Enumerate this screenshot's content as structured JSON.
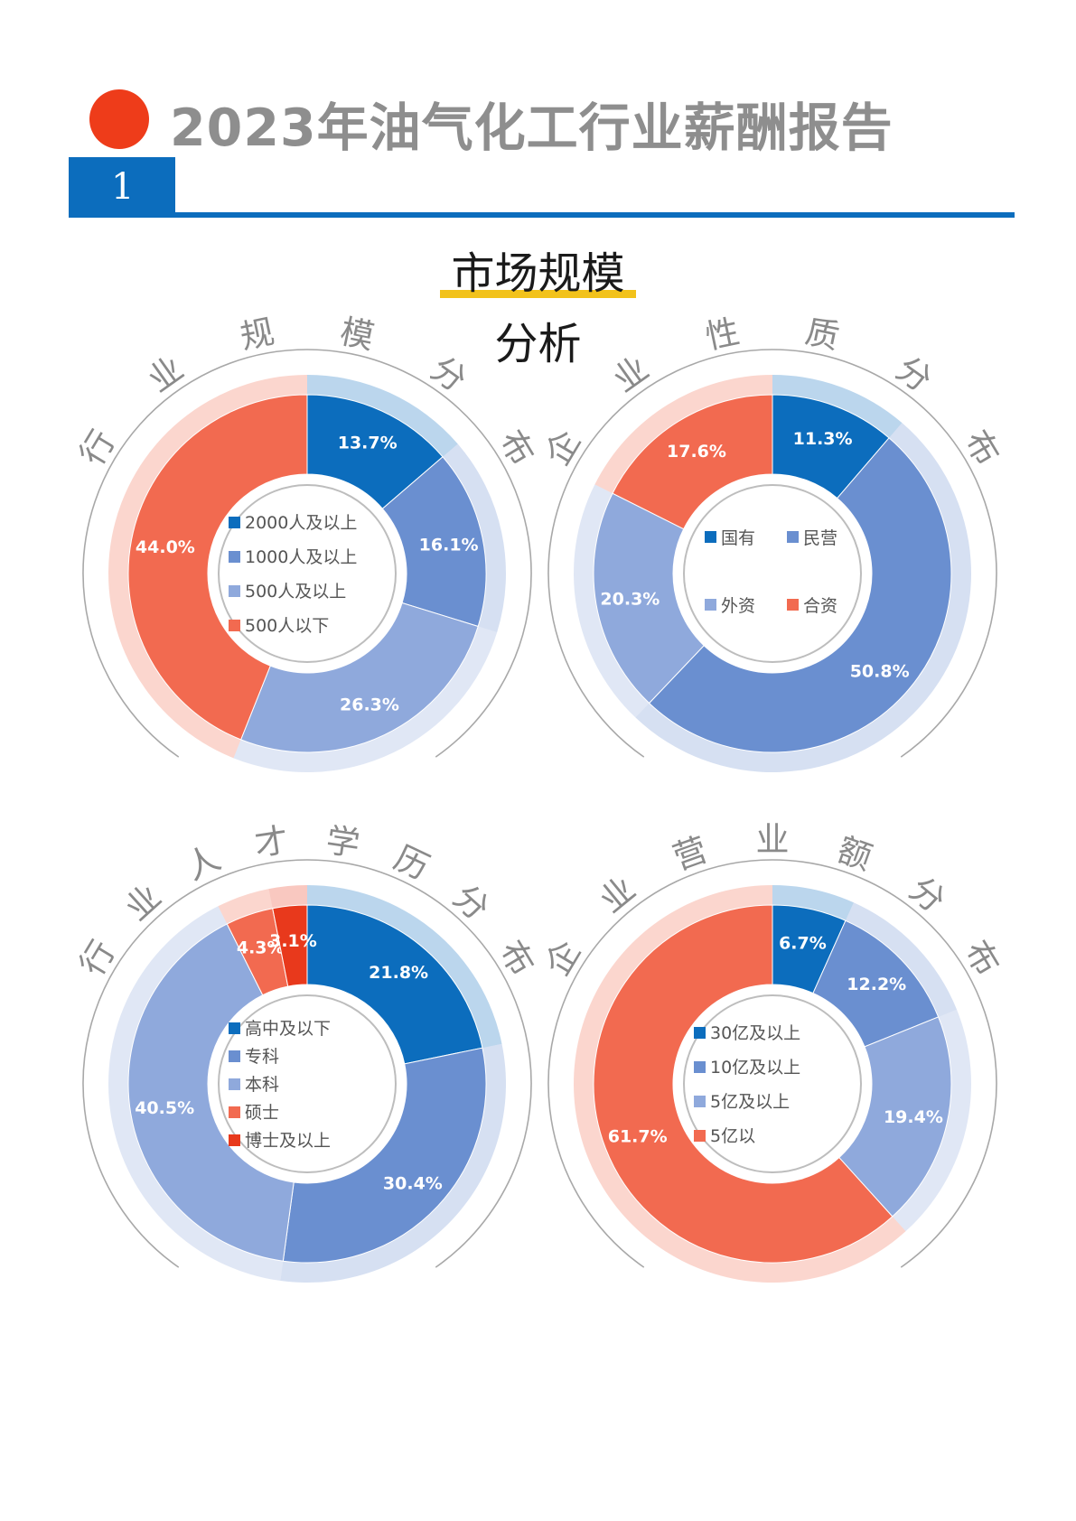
{
  "header": {
    "title": "2023年油气化工行业薪酬报告",
    "section_number": "1"
  },
  "section": {
    "title_line1": "市场规模",
    "title_line2": "分析"
  },
  "colors": {
    "c1": "#0c6dbd",
    "c2": "#6a8fd0",
    "c3": "#8fa9dc",
    "c4": "#f26a50",
    "c5": "#e8391c"
  },
  "chart_data": [
    {
      "type": "pie",
      "title": "行业规模分布",
      "categories": [
        "2000人及以上",
        "1000人及以上",
        "500人及以上",
        "500人以下"
      ],
      "values": [
        13.7,
        16.1,
        26.3,
        44.0
      ],
      "labels": [
        "13.7%",
        "16.1%",
        "26.3%",
        "44.0%"
      ],
      "legend_position": "center",
      "legend_layout": "column"
    },
    {
      "type": "pie",
      "title": "企业性质分布",
      "categories": [
        "国有",
        "民营",
        "外资",
        "合资"
      ],
      "values": [
        11.3,
        50.8,
        20.3,
        17.6
      ],
      "labels": [
        "11.3%",
        "50.8%",
        "20.3%",
        "17.6%"
      ],
      "legend_position": "center",
      "legend_layout": "grid"
    },
    {
      "type": "pie",
      "title": "行业人才学历分布",
      "categories": [
        "高中及以下",
        "专科",
        "本科",
        "硕士",
        "博士及以上"
      ],
      "values": [
        21.8,
        30.4,
        40.5,
        4.3,
        3.1
      ],
      "labels": [
        "21.8%",
        "30.4%",
        "40.5%",
        "4.3%",
        "3.1%"
      ],
      "legend_position": "center",
      "legend_layout": "column"
    },
    {
      "type": "pie",
      "title": "企业营业额分布",
      "categories": [
        "30亿及以上",
        "10亿及以上",
        "5亿及以上",
        "5亿以"
      ],
      "values": [
        6.7,
        12.2,
        19.4,
        61.7
      ],
      "labels": [
        "6.7%",
        "12.2%",
        "19.4%",
        "61.7%"
      ],
      "legend_position": "center",
      "legend_layout": "column"
    }
  ]
}
